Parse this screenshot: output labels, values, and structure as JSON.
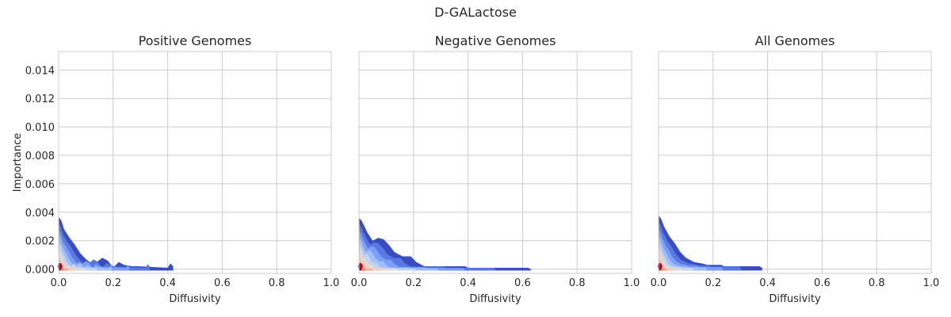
{
  "figure": {
    "suptitle": "D-GALactose"
  },
  "chart_data": [
    {
      "type": "contour",
      "title": "Positive Genomes",
      "xlabel": "Diffusivity",
      "ylabel": "Importance",
      "xlim": [
        0.0,
        1.0
      ],
      "ylim": [
        -0.0003,
        0.0153
      ],
      "xticks": [
        "0.0",
        "0.2",
        "0.4",
        "0.6",
        "0.8",
        "1.0"
      ],
      "yticks": [
        "0.000",
        "0.002",
        "0.004",
        "0.006",
        "0.008",
        "0.010",
        "0.012",
        "0.014"
      ],
      "show_yticks": true,
      "grid": true,
      "density_peak": {
        "x": 0.005,
        "y": 0.0002
      },
      "envelope": [
        [
          0.0,
          0.0037
        ],
        [
          0.01,
          0.0034
        ],
        [
          0.02,
          0.0028
        ],
        [
          0.04,
          0.0022
        ],
        [
          0.06,
          0.0017
        ],
        [
          0.08,
          0.0011
        ],
        [
          0.1,
          0.0007
        ],
        [
          0.12,
          0.0004
        ],
        [
          0.14,
          0.0005
        ],
        [
          0.16,
          0.0008
        ],
        [
          0.18,
          0.0006
        ],
        [
          0.2,
          0.0001
        ],
        [
          0.22,
          0.0005
        ],
        [
          0.24,
          0.0003
        ],
        [
          0.27,
          0.0002
        ],
        [
          0.29,
          0.0002
        ],
        [
          0.4,
          0.0001
        ],
        [
          0.41,
          0.0004
        ],
        [
          0.42,
          0.0002
        ]
      ]
    },
    {
      "type": "contour",
      "title": "Negative Genomes",
      "xlabel": "Diffusivity",
      "ylabel": "",
      "xlim": [
        0.0,
        1.0
      ],
      "ylim": [
        -0.0003,
        0.0153
      ],
      "xticks": [
        "0.0",
        "0.2",
        "0.4",
        "0.6",
        "0.8",
        "1.0"
      ],
      "yticks": [],
      "show_yticks": false,
      "grid": true,
      "density_peak": {
        "x": 0.005,
        "y": 0.0002
      },
      "envelope": [
        [
          0.0,
          0.0036
        ],
        [
          0.01,
          0.0034
        ],
        [
          0.03,
          0.0026
        ],
        [
          0.05,
          0.002
        ],
        [
          0.07,
          0.0022
        ],
        [
          0.09,
          0.0021
        ],
        [
          0.11,
          0.0017
        ],
        [
          0.13,
          0.0012
        ],
        [
          0.16,
          0.0009
        ],
        [
          0.19,
          0.0009
        ],
        [
          0.21,
          0.0005
        ],
        [
          0.23,
          0.0003
        ],
        [
          0.24,
          0.0002
        ],
        [
          0.39,
          0.0002
        ],
        [
          0.4,
          0.0001
        ],
        [
          0.62,
          0.0001
        ],
        [
          0.63,
          0.0
        ]
      ]
    },
    {
      "type": "contour",
      "title": "All Genomes",
      "xlabel": "Diffusivity",
      "ylabel": "",
      "xlim": [
        0.0,
        1.0
      ],
      "ylim": [
        -0.0003,
        0.0153
      ],
      "xticks": [
        "0.0",
        "0.2",
        "0.4",
        "0.6",
        "0.8",
        "1.0"
      ],
      "yticks": [],
      "show_yticks": false,
      "grid": true,
      "density_peak": {
        "x": 0.005,
        "y": 0.0002
      },
      "envelope": [
        [
          0.0,
          0.0038
        ],
        [
          0.01,
          0.0035
        ],
        [
          0.02,
          0.003
        ],
        [
          0.04,
          0.0023
        ],
        [
          0.06,
          0.0018
        ],
        [
          0.08,
          0.0012
        ],
        [
          0.1,
          0.0008
        ],
        [
          0.13,
          0.0005
        ],
        [
          0.16,
          0.0004
        ],
        [
          0.18,
          0.0003
        ],
        [
          0.2,
          0.0003
        ],
        [
          0.21,
          0.0003
        ],
        [
          0.23,
          0.0003
        ],
        [
          0.24,
          0.0002
        ],
        [
          0.32,
          0.0002
        ],
        [
          0.37,
          0.0002
        ],
        [
          0.38,
          0.0001
        ]
      ]
    }
  ],
  "colors": {
    "grid": "#cccccc",
    "spine": "#cccccc",
    "text": "#262626",
    "levels": [
      "#3b4cc0",
      "#5a78e4",
      "#7b9ff9",
      "#9ebeff",
      "#c0d4f5",
      "#dddcdc",
      "#f2cbb7",
      "#f7a889",
      "#e7745b",
      "#b40426"
    ]
  }
}
